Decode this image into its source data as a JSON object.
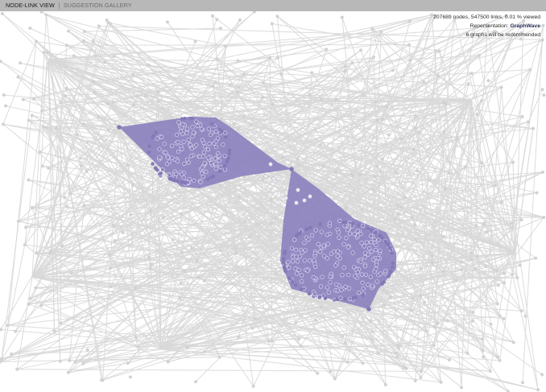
{
  "tabs": [
    {
      "label": "NODE-LINK VIEW",
      "active": true
    },
    {
      "label": "SUGGESTION GALLERY",
      "active": false
    }
  ],
  "info": {
    "stats": "207689 nodes, 547500 links, 0.01 % viewed",
    "representation_label": "Repersentation:",
    "representation_value": "GraphWave",
    "recommend": "6 graphs will be recommended"
  },
  "colors": {
    "edge": "#d8d8d8",
    "node": "#d2d2d2",
    "highlight_fill": "#8d82bf",
    "highlight_node": "#8478b6",
    "tab_bar": "#b8b8b8"
  },
  "icons": []
}
